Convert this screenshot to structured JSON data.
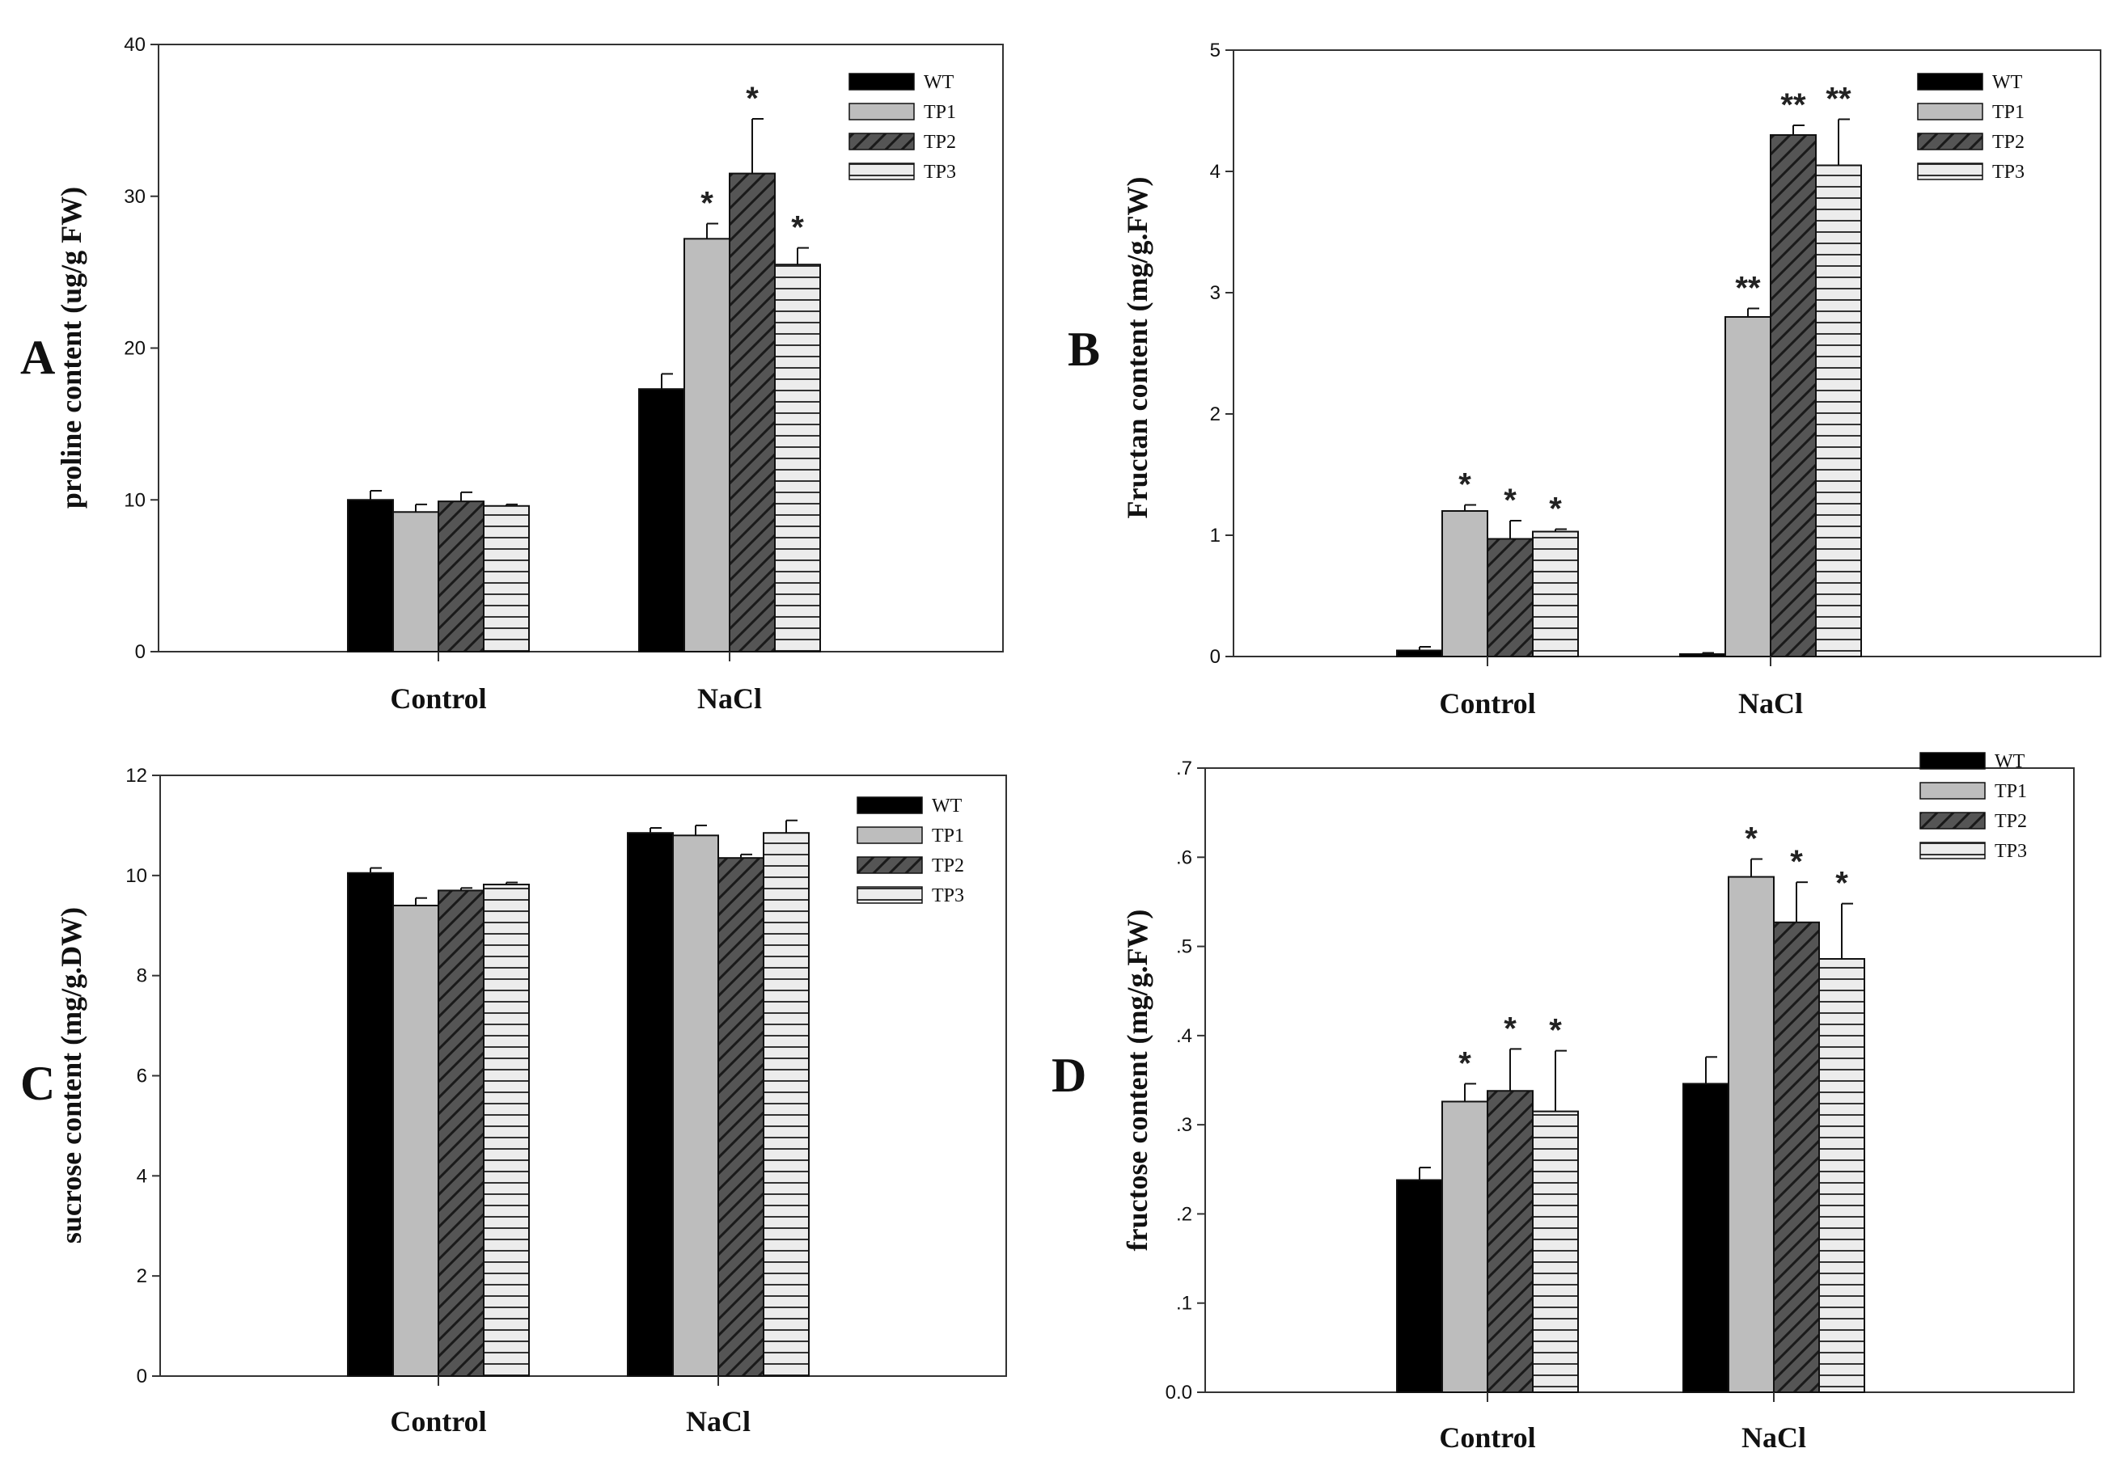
{
  "figure": {
    "series_names": [
      "WT",
      "TP1",
      "TP2",
      "TP3"
    ],
    "series_fills": [
      "#000000",
      "#bdbdbd",
      "#555555",
      "#e4e4e4"
    ],
    "series_patterns": [
      "solid",
      "solid",
      "diagonal",
      "horizontal"
    ]
  },
  "chart_data": [
    {
      "panel": "A",
      "type": "bar",
      "title": "",
      "ylabel": "proline content (ug/g FW)",
      "xlabel": "",
      "categories": [
        "Control",
        "NaCl"
      ],
      "ylim": [
        0,
        40
      ],
      "ytick_labels": [
        "0",
        "10",
        "20",
        "30",
        "40"
      ],
      "ytick_values": [
        0,
        10,
        20,
        30,
        40
      ],
      "legend_position": "top-right",
      "series": [
        {
          "name": "WT",
          "values": [
            10.0,
            17.3
          ],
          "errors": [
            0.6,
            1.0
          ],
          "sig": [
            "",
            ""
          ]
        },
        {
          "name": "TP1",
          "values": [
            9.2,
            27.2
          ],
          "errors": [
            0.5,
            1.0
          ],
          "sig": [
            "",
            "*"
          ]
        },
        {
          "name": "TP2",
          "values": [
            9.9,
            31.5
          ],
          "errors": [
            0.6,
            3.6
          ],
          "sig": [
            "",
            "*"
          ]
        },
        {
          "name": "TP3",
          "values": [
            9.6,
            25.5
          ],
          "errors": [
            0.1,
            1.1
          ],
          "sig": [
            "",
            "*"
          ]
        }
      ]
    },
    {
      "panel": "B",
      "type": "bar",
      "title": "",
      "ylabel": "Fructan content (mg/g.FW)",
      "xlabel": "",
      "categories": [
        "Control",
        "NaCl"
      ],
      "ylim": [
        0,
        5
      ],
      "ytick_labels": [
        "0",
        "1",
        "2",
        "3",
        "4",
        "5"
      ],
      "ytick_values": [
        0,
        1,
        2,
        3,
        4,
        5
      ],
      "legend_position": "top-right",
      "series": [
        {
          "name": "WT",
          "values": [
            0.05,
            0.02
          ],
          "errors": [
            0.03,
            0.01
          ],
          "sig": [
            "",
            ""
          ]
        },
        {
          "name": "TP1",
          "values": [
            1.2,
            2.8
          ],
          "errors": [
            0.05,
            0.07
          ],
          "sig": [
            "*",
            "**"
          ]
        },
        {
          "name": "TP2",
          "values": [
            0.97,
            4.3
          ],
          "errors": [
            0.15,
            0.08
          ],
          "sig": [
            "*",
            "**"
          ]
        },
        {
          "name": "TP3",
          "values": [
            1.03,
            4.05
          ],
          "errors": [
            0.02,
            0.38
          ],
          "sig": [
            "*",
            "**"
          ]
        }
      ]
    },
    {
      "panel": "C",
      "type": "bar",
      "title": "",
      "ylabel": "sucrose content (mg/g.DW)",
      "xlabel": "",
      "categories": [
        "Control",
        "NaCl"
      ],
      "ylim": [
        0,
        12
      ],
      "ytick_labels": [
        "0",
        "2",
        "4",
        "6",
        "8",
        "10",
        "12"
      ],
      "ytick_values": [
        0,
        2,
        4,
        6,
        8,
        10,
        12
      ],
      "legend_position": "top-right",
      "series": [
        {
          "name": "WT",
          "values": [
            10.05,
            10.85
          ],
          "errors": [
            0.1,
            0.1
          ],
          "sig": [
            "",
            ""
          ]
        },
        {
          "name": "TP1",
          "values": [
            9.4,
            10.8
          ],
          "errors": [
            0.15,
            0.2
          ],
          "sig": [
            "",
            ""
          ]
        },
        {
          "name": "TP2",
          "values": [
            9.7,
            10.35
          ],
          "errors": [
            0.05,
            0.07
          ],
          "sig": [
            "",
            ""
          ]
        },
        {
          "name": "TP3",
          "values": [
            9.82,
            10.85
          ],
          "errors": [
            0.04,
            0.25
          ],
          "sig": [
            "",
            ""
          ]
        }
      ]
    },
    {
      "panel": "D",
      "type": "bar",
      "title": "",
      "ylabel": "fructose content (mg/g.FW)",
      "xlabel": "",
      "categories": [
        "Control",
        "NaCl"
      ],
      "ylim": [
        0,
        0.7
      ],
      "ytick_labels": [
        "0.0",
        ".1",
        ".2",
        ".3",
        ".4",
        ".5",
        ".6",
        ".7"
      ],
      "ytick_values": [
        0,
        0.1,
        0.2,
        0.3,
        0.4,
        0.5,
        0.6,
        0.7
      ],
      "legend_position": "top-right",
      "series": [
        {
          "name": "WT",
          "values": [
            0.238,
            0.346
          ],
          "errors": [
            0.014,
            0.03
          ],
          "sig": [
            "",
            ""
          ]
        },
        {
          "name": "TP1",
          "values": [
            0.326,
            0.578
          ],
          "errors": [
            0.02,
            0.02
          ],
          "sig": [
            "*",
            "*"
          ]
        },
        {
          "name": "TP2",
          "values": [
            0.338,
            0.527
          ],
          "errors": [
            0.047,
            0.045
          ],
          "sig": [
            "*",
            "*"
          ]
        },
        {
          "name": "TP3",
          "values": [
            0.315,
            0.486
          ],
          "errors": [
            0.068,
            0.062
          ],
          "sig": [
            "*",
            "*"
          ]
        }
      ]
    }
  ]
}
